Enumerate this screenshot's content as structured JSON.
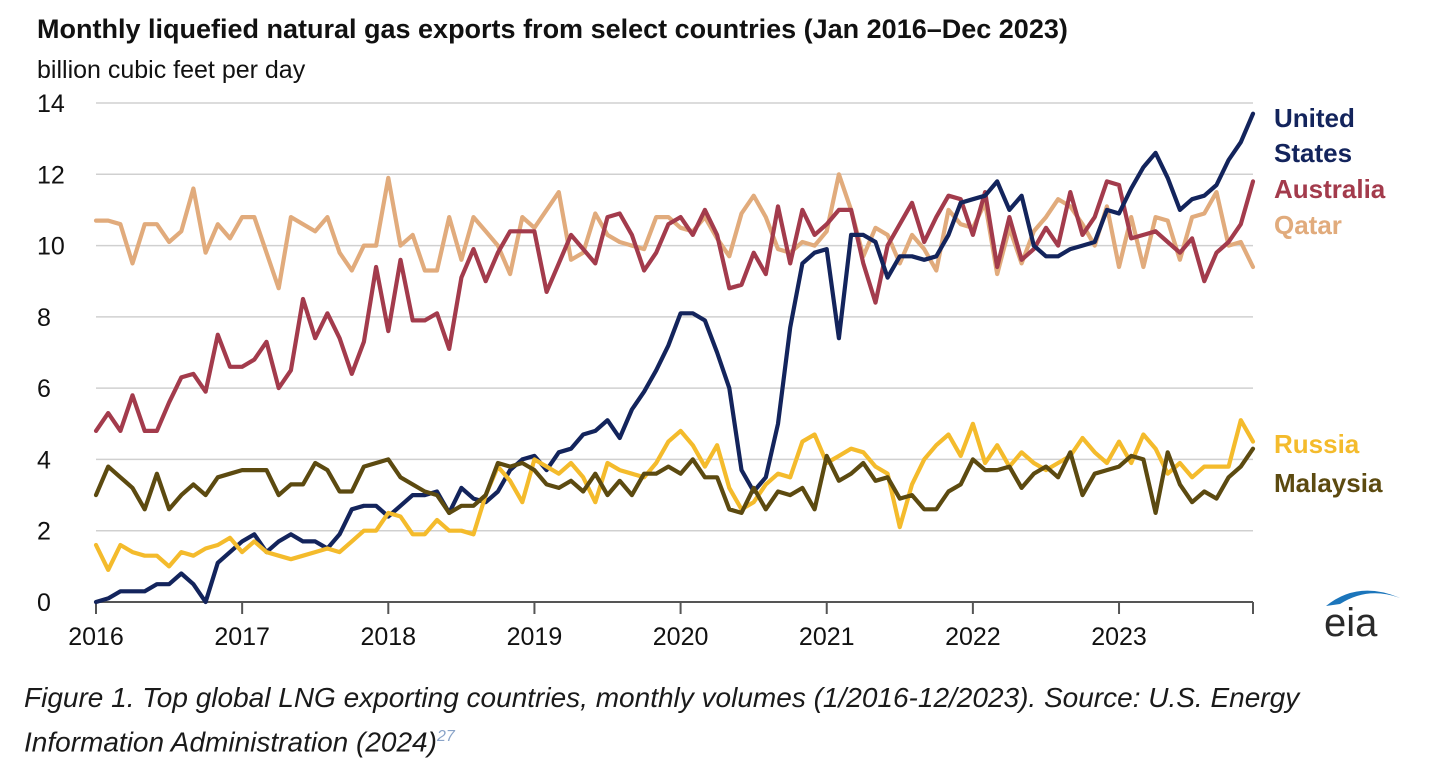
{
  "header": {
    "title": "Monthly liquefied natural gas exports from select countries (Jan 2016–Dec 2023)",
    "subtitle": "billion cubic feet per day"
  },
  "caption": {
    "text": "Figure 1. Top global LNG exporting countries, monthly volumes (1/2016-12/2023). Source: U.S. Energy Information Administration (2024)",
    "ref": "27"
  },
  "logo": {
    "text": "eia"
  },
  "chart_data": {
    "type": "line",
    "title": "Monthly liquefied natural gas exports from select countries (Jan 2016–Dec 2023)",
    "ylabel": "billion cubic feet per day",
    "xlabel": "",
    "ylim": [
      0,
      14
    ],
    "yticks": [
      0,
      2,
      4,
      6,
      8,
      10,
      12,
      14
    ],
    "xticks": [
      "2016",
      "2017",
      "2018",
      "2019",
      "2020",
      "2021",
      "2022",
      "2023"
    ],
    "x_start": "2016-01",
    "x_end": "2023-12",
    "grid": "horizontal",
    "legend": "right, labels at line ends",
    "series": [
      {
        "name": "Qatar",
        "label": "Qatar",
        "color": "#e1ab7c",
        "values": [
          10.7,
          10.7,
          10.6,
          9.5,
          10.6,
          10.6,
          10.1,
          10.4,
          11.6,
          9.8,
          10.6,
          10.2,
          10.8,
          10.8,
          9.8,
          8.8,
          10.8,
          10.6,
          10.4,
          10.8,
          9.8,
          9.3,
          10,
          10,
          11.9,
          10,
          10.3,
          9.3,
          9.3,
          10.8,
          9.6,
          10.8,
          10.4,
          10,
          9.2,
          10.8,
          10.5,
          11,
          11.5,
          9.6,
          9.8,
          10.9,
          10.3,
          10.1,
          10,
          9.9,
          10.8,
          10.8,
          10.5,
          10.4,
          10.8,
          10.2,
          9.7,
          10.9,
          11.4,
          10.8,
          9.9,
          9.8,
          10.1,
          10,
          10.4,
          12,
          11,
          9.7,
          10.5,
          10.3,
          9.5,
          10.3,
          9.9,
          9.3,
          11,
          10.6,
          10.5,
          11.2,
          9.2,
          10.5,
          9.5,
          10.4,
          10.8,
          11.3,
          11.1,
          10.6,
          10,
          11.1,
          9.4,
          10.8,
          9.4,
          10.8,
          10.7,
          9.6,
          10.8,
          10.9,
          11.5,
          10,
          10.1,
          9.4
        ]
      },
      {
        "name": "Australia",
        "label": "Australia",
        "color": "#a33b4c",
        "values": [
          4.8,
          5.3,
          4.8,
          5.8,
          4.8,
          4.8,
          5.6,
          6.3,
          6.4,
          5.9,
          7.5,
          6.6,
          6.6,
          6.8,
          7.3,
          6,
          6.5,
          8.5,
          7.4,
          8.1,
          7.4,
          6.4,
          7.3,
          9.4,
          7.6,
          9.6,
          7.9,
          7.9,
          8.1,
          7.1,
          9.1,
          9.9,
          9,
          9.8,
          10.4,
          10.4,
          10.4,
          8.7,
          9.5,
          10.3,
          9.9,
          9.5,
          10.8,
          10.9,
          10.3,
          9.3,
          9.8,
          10.6,
          10.8,
          10.3,
          11,
          10.3,
          8.8,
          8.9,
          9.8,
          9.2,
          11.1,
          9.5,
          11,
          10.3,
          10.6,
          11,
          11,
          9.5,
          8.4,
          10,
          10.6,
          11.2,
          10.1,
          10.8,
          11.4,
          11.3,
          10.3,
          11.5,
          9.4,
          10.8,
          9.6,
          9.9,
          10.5,
          10,
          11.5,
          10.3,
          10.8,
          11.8,
          11.7,
          10.2,
          10.3,
          10.4,
          10.1,
          9.8,
          10.2,
          9,
          9.8,
          10.1,
          10.6,
          11.8
        ]
      },
      {
        "name": "United States",
        "label": "United States",
        "color": "#13245c",
        "values": [
          0,
          0.1,
          0.3,
          0.3,
          0.3,
          0.5,
          0.5,
          0.8,
          0.5,
          0,
          1.1,
          1.4,
          1.7,
          1.9,
          1.4,
          1.7,
          1.9,
          1.7,
          1.7,
          1.5,
          1.9,
          2.6,
          2.7,
          2.7,
          2.4,
          2.7,
          3,
          3,
          3.1,
          2.5,
          3.2,
          2.9,
          2.8,
          3.1,
          3.7,
          4,
          4.1,
          3.7,
          4.2,
          4.3,
          4.7,
          4.8,
          5.1,
          4.6,
          5.4,
          5.9,
          6.5,
          7.2,
          8.1,
          8.1,
          7.9,
          7,
          6,
          3.7,
          3.1,
          3.5,
          5,
          7.7,
          9.5,
          9.8,
          9.9,
          7.4,
          10.3,
          10.3,
          10.1,
          9.1,
          9.7,
          9.7,
          9.6,
          9.7,
          10.3,
          11.2,
          11.3,
          11.4,
          11.8,
          11,
          11.4,
          10,
          9.7,
          9.7,
          9.9,
          10,
          10.1,
          11,
          10.9,
          11.6,
          12.2,
          12.6,
          11.9,
          11,
          11.3,
          11.4,
          11.7,
          12.4,
          12.9,
          13.7
        ]
      },
      {
        "name": "Russia",
        "label": "Russia",
        "color": "#f4bb2c",
        "values": [
          1.6,
          0.9,
          1.6,
          1.4,
          1.3,
          1.3,
          1,
          1.4,
          1.3,
          1.5,
          1.6,
          1.8,
          1.4,
          1.7,
          1.4,
          1.3,
          1.2,
          1.3,
          1.4,
          1.5,
          1.4,
          1.7,
          2,
          2,
          2.5,
          2.4,
          1.9,
          1.9,
          2.3,
          2,
          2,
          1.9,
          3,
          3.8,
          3.4,
          2.8,
          4,
          3.8,
          3.6,
          3.9,
          3.5,
          2.8,
          3.9,
          3.7,
          3.6,
          3.5,
          3.9,
          4.5,
          4.8,
          4.4,
          3.8,
          4.4,
          3.2,
          2.6,
          2.8,
          3.3,
          3.6,
          3.5,
          4.5,
          4.7,
          3.9,
          4.1,
          4.3,
          4.2,
          3.8,
          3.6,
          2.1,
          3.3,
          4,
          4.4,
          4.7,
          4.1,
          5,
          3.9,
          4.4,
          3.8,
          4.2,
          3.9,
          3.7,
          3.9,
          4.1,
          4.6,
          4.2,
          3.9,
          4.5,
          3.9,
          4.7,
          4.3,
          3.6,
          3.9,
          3.5,
          3.8,
          3.8,
          3.8,
          5.1,
          4.5
        ]
      },
      {
        "name": "Malaysia",
        "label": "Malaysia",
        "color": "#5c4a10",
        "values": [
          3,
          3.8,
          3.5,
          3.2,
          2.6,
          3.6,
          2.6,
          3,
          3.3,
          3,
          3.5,
          3.6,
          3.7,
          3.7,
          3.7,
          3,
          3.3,
          3.3,
          3.9,
          3.7,
          3.1,
          3.1,
          3.8,
          3.9,
          4,
          3.5,
          3.3,
          3.1,
          3,
          2.5,
          2.7,
          2.7,
          3,
          3.9,
          3.8,
          3.9,
          3.7,
          3.3,
          3.2,
          3.4,
          3.1,
          3.6,
          3,
          3.4,
          3,
          3.6,
          3.6,
          3.8,
          3.6,
          4,
          3.5,
          3.5,
          2.6,
          2.5,
          3.2,
          2.6,
          3.1,
          3,
          3.2,
          2.6,
          4.1,
          3.4,
          3.6,
          3.9,
          3.4,
          3.5,
          2.9,
          3,
          2.6,
          2.6,
          3.1,
          3.3,
          4,
          3.7,
          3.7,
          3.8,
          3.2,
          3.6,
          3.8,
          3.5,
          4.2,
          3,
          3.6,
          3.7,
          3.8,
          4.1,
          4,
          2.5,
          4.2,
          3.3,
          2.8,
          3.1,
          2.9,
          3.5,
          3.8,
          4.3
        ]
      }
    ]
  }
}
